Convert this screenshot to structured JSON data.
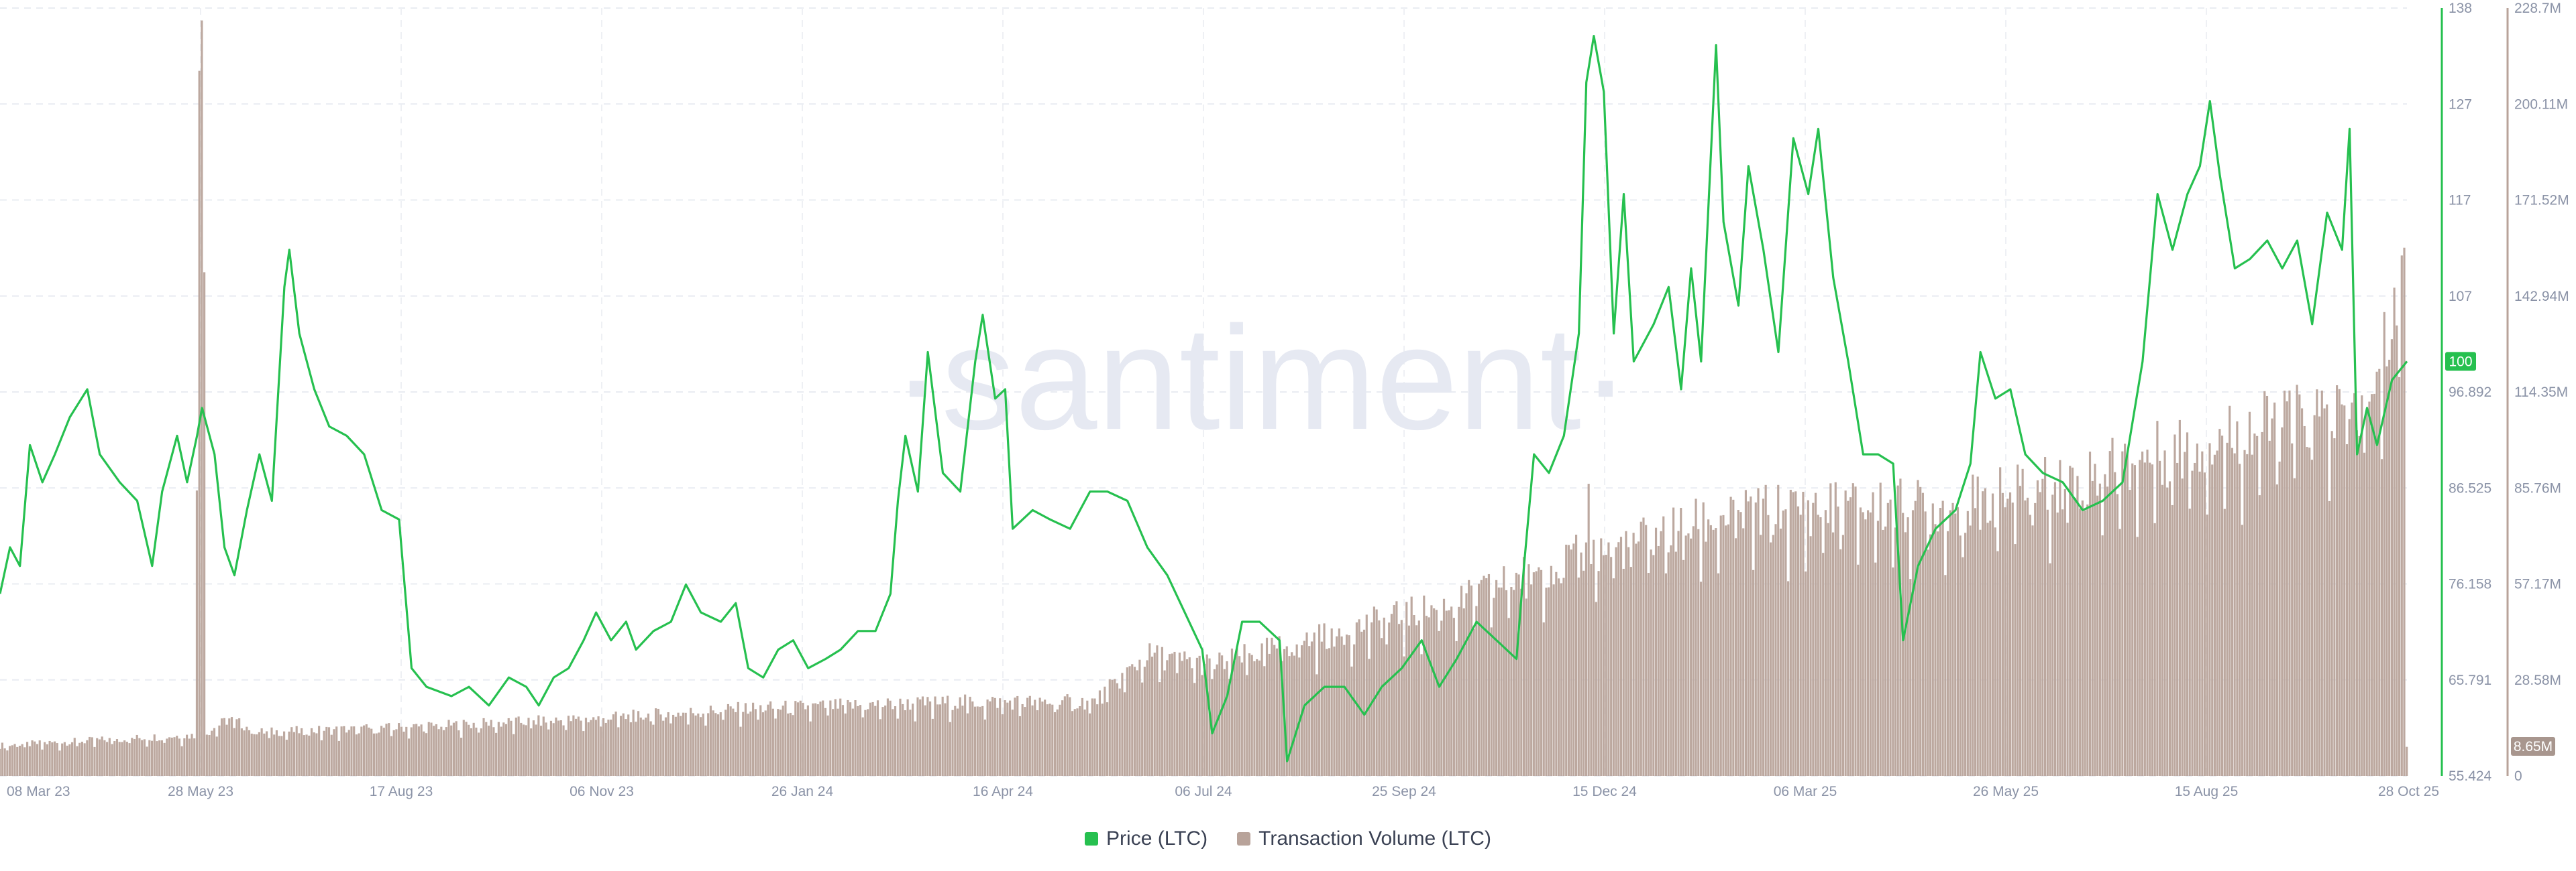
{
  "watermark": "·santiment·",
  "chart_data": {
    "type": "line+bar",
    "title": "",
    "x_axis": {
      "type": "date",
      "range": [
        "2023-03-08",
        "2025-10-28"
      ],
      "tick_labels": [
        "08 Mar 23",
        "28 May 23",
        "17 Aug 23",
        "06 Nov 23",
        "26 Jan 24",
        "16 Apr 24",
        "06 Jul 24",
        "25 Sep 24",
        "15 Dec 24",
        "06 Mar 25",
        "26 May 25",
        "15 Aug 25",
        "28 Oct 25"
      ]
    },
    "y_axis_price": {
      "range": [
        55.424,
        138
      ],
      "tick_labels": [
        "138",
        "127",
        "117",
        "107",
        "96.892",
        "86.525",
        "76.158",
        "65.791",
        "55.424"
      ]
    },
    "y_axis_volume": {
      "range": [
        0,
        228700000
      ],
      "tick_labels": [
        "228.7M",
        "200.11M",
        "171.52M",
        "142.94M",
        "114.35M",
        "85.76M",
        "57.17M",
        "28.58M",
        "0"
      ]
    },
    "current_price_label": "100",
    "current_volume_label": "8.65M",
    "legend_position": "bottom-center",
    "grid": true,
    "series": [
      {
        "name": "Price (LTC)",
        "kind": "line",
        "axis": "price",
        "color": "#26c04f",
        "points": [
          [
            "2023-03-08",
            75
          ],
          [
            "2023-03-12",
            80
          ],
          [
            "2023-03-16",
            78
          ],
          [
            "2023-03-20",
            91
          ],
          [
            "2023-03-25",
            87
          ],
          [
            "2023-03-30",
            90
          ],
          [
            "2023-04-05",
            94
          ],
          [
            "2023-04-12",
            97
          ],
          [
            "2023-04-17",
            90
          ],
          [
            "2023-04-25",
            87
          ],
          [
            "2023-05-02",
            85
          ],
          [
            "2023-05-08",
            78
          ],
          [
            "2023-05-12",
            86
          ],
          [
            "2023-05-18",
            92
          ],
          [
            "2023-05-22",
            87
          ],
          [
            "2023-05-26",
            92
          ],
          [
            "2023-05-28",
            95
          ],
          [
            "2023-06-02",
            90
          ],
          [
            "2023-06-06",
            80
          ],
          [
            "2023-06-10",
            77
          ],
          [
            "2023-06-15",
            84
          ],
          [
            "2023-06-20",
            90
          ],
          [
            "2023-06-25",
            85
          ],
          [
            "2023-06-30",
            108
          ],
          [
            "2023-07-02",
            112
          ],
          [
            "2023-07-06",
            103
          ],
          [
            "2023-07-12",
            97
          ],
          [
            "2023-07-18",
            93
          ],
          [
            "2023-07-25",
            92
          ],
          [
            "2023-08-01",
            90
          ],
          [
            "2023-08-08",
            84
          ],
          [
            "2023-08-15",
            83
          ],
          [
            "2023-08-20",
            67
          ],
          [
            "2023-08-26",
            65
          ],
          [
            "2023-09-05",
            64
          ],
          [
            "2023-09-12",
            65
          ],
          [
            "2023-09-20",
            63
          ],
          [
            "2023-09-28",
            66
          ],
          [
            "2023-10-05",
            65
          ],
          [
            "2023-10-10",
            63
          ],
          [
            "2023-10-16",
            66
          ],
          [
            "2023-10-22",
            67
          ],
          [
            "2023-10-28",
            70
          ],
          [
            "2023-11-02",
            73
          ],
          [
            "2023-11-08",
            70
          ],
          [
            "2023-11-14",
            72
          ],
          [
            "2023-11-18",
            69
          ],
          [
            "2023-11-25",
            71
          ],
          [
            "2023-12-02",
            72
          ],
          [
            "2023-12-08",
            76
          ],
          [
            "2023-12-14",
            73
          ],
          [
            "2023-12-22",
            72
          ],
          [
            "2023-12-28",
            74
          ],
          [
            "2024-01-02",
            67
          ],
          [
            "2024-01-08",
            66
          ],
          [
            "2024-01-14",
            69
          ],
          [
            "2024-01-20",
            70
          ],
          [
            "2024-01-26",
            67
          ],
          [
            "2024-02-02",
            68
          ],
          [
            "2024-02-08",
            69
          ],
          [
            "2024-02-15",
            71
          ],
          [
            "2024-02-22",
            71
          ],
          [
            "2024-02-28",
            75
          ],
          [
            "2024-03-02",
            85
          ],
          [
            "2024-03-05",
            92
          ],
          [
            "2024-03-10",
            86
          ],
          [
            "2024-03-14",
            101
          ],
          [
            "2024-03-20",
            88
          ],
          [
            "2024-03-27",
            86
          ],
          [
            "2024-04-02",
            100
          ],
          [
            "2024-04-05",
            105
          ],
          [
            "2024-04-10",
            96
          ],
          [
            "2024-04-14",
            97
          ],
          [
            "2024-04-17",
            82
          ],
          [
            "2024-04-25",
            84
          ],
          [
            "2024-05-02",
            83
          ],
          [
            "2024-05-10",
            82
          ],
          [
            "2024-05-18",
            86
          ],
          [
            "2024-05-25",
            86
          ],
          [
            "2024-06-02",
            85
          ],
          [
            "2024-06-10",
            80
          ],
          [
            "2024-06-18",
            77
          ],
          [
            "2024-06-25",
            73
          ],
          [
            "2024-07-02",
            69
          ],
          [
            "2024-07-06",
            60
          ],
          [
            "2024-07-12",
            64
          ],
          [
            "2024-07-18",
            72
          ],
          [
            "2024-07-25",
            72
          ],
          [
            "2024-08-02",
            70
          ],
          [
            "2024-08-05",
            57
          ],
          [
            "2024-08-12",
            63
          ],
          [
            "2024-08-20",
            65
          ],
          [
            "2024-08-28",
            65
          ],
          [
            "2024-09-05",
            62
          ],
          [
            "2024-09-12",
            65
          ],
          [
            "2024-09-20",
            67
          ],
          [
            "2024-09-28",
            70
          ],
          [
            "2024-10-05",
            65
          ],
          [
            "2024-10-12",
            68
          ],
          [
            "2024-10-20",
            72
          ],
          [
            "2024-10-28",
            70
          ],
          [
            "2024-11-05",
            68
          ],
          [
            "2024-11-08",
            78
          ],
          [
            "2024-11-12",
            90
          ],
          [
            "2024-11-18",
            88
          ],
          [
            "2024-11-24",
            92
          ],
          [
            "2024-11-30",
            103
          ],
          [
            "2024-12-03",
            130
          ],
          [
            "2024-12-06",
            135
          ],
          [
            "2024-12-10",
            129
          ],
          [
            "2024-12-14",
            103
          ],
          [
            "2024-12-18",
            118
          ],
          [
            "2024-12-22",
            100
          ],
          [
            "2024-12-30",
            104
          ],
          [
            "2025-01-05",
            108
          ],
          [
            "2025-01-10",
            97
          ],
          [
            "2025-01-14",
            110
          ],
          [
            "2025-01-18",
            100
          ],
          [
            "2025-01-24",
            134
          ],
          [
            "2025-01-27",
            115
          ],
          [
            "2025-02-02",
            106
          ],
          [
            "2025-02-06",
            121
          ],
          [
            "2025-02-12",
            112
          ],
          [
            "2025-02-18",
            101
          ],
          [
            "2025-02-24",
            124
          ],
          [
            "2025-03-02",
            118
          ],
          [
            "2025-03-06",
            125
          ],
          [
            "2025-03-12",
            109
          ],
          [
            "2025-03-18",
            100
          ],
          [
            "2025-03-24",
            90
          ],
          [
            "2025-03-30",
            90
          ],
          [
            "2025-04-05",
            89
          ],
          [
            "2025-04-09",
            70
          ],
          [
            "2025-04-15",
            78
          ],
          [
            "2025-04-22",
            82
          ],
          [
            "2025-04-30",
            84
          ],
          [
            "2025-05-06",
            89
          ],
          [
            "2025-05-10",
            101
          ],
          [
            "2025-05-16",
            96
          ],
          [
            "2025-05-22",
            97
          ],
          [
            "2025-05-28",
            90
          ],
          [
            "2025-06-04",
            88
          ],
          [
            "2025-06-12",
            87
          ],
          [
            "2025-06-20",
            84
          ],
          [
            "2025-06-28",
            85
          ],
          [
            "2025-07-06",
            87
          ],
          [
            "2025-07-14",
            100
          ],
          [
            "2025-07-20",
            118
          ],
          [
            "2025-07-26",
            112
          ],
          [
            "2025-08-01",
            118
          ],
          [
            "2025-08-06",
            121
          ],
          [
            "2025-08-10",
            128
          ],
          [
            "2025-08-14",
            120
          ],
          [
            "2025-08-20",
            110
          ],
          [
            "2025-08-26",
            111
          ],
          [
            "2025-09-02",
            113
          ],
          [
            "2025-09-08",
            110
          ],
          [
            "2025-09-14",
            113
          ],
          [
            "2025-09-20",
            104
          ],
          [
            "2025-09-26",
            116
          ],
          [
            "2025-10-02",
            112
          ],
          [
            "2025-10-05",
            125
          ],
          [
            "2025-10-08",
            90
          ],
          [
            "2025-10-12",
            95
          ],
          [
            "2025-10-16",
            91
          ],
          [
            "2025-10-22",
            98
          ],
          [
            "2025-10-28",
            100
          ]
        ]
      },
      {
        "name": "Transaction Volume (LTC)",
        "kind": "bar",
        "axis": "volume",
        "color": "#b8a39a",
        "anchors": [
          [
            "2023-03-08",
            9000000
          ],
          [
            "2023-05-20",
            12000000
          ],
          [
            "2023-05-28",
            12000000
          ],
          [
            "2023-06-08",
            17000000
          ],
          [
            "2023-06-20",
            13000000
          ],
          [
            "2023-08-01",
            14000000
          ],
          [
            "2023-09-01",
            15000000
          ],
          [
            "2023-11-01",
            17000000
          ],
          [
            "2024-01-01",
            20000000
          ],
          [
            "2024-04-01",
            22000000
          ],
          [
            "2024-05-20",
            22000000
          ],
          [
            "2024-06-10",
            36000000
          ],
          [
            "2024-07-06",
            33000000
          ],
          [
            "2024-09-01",
            44000000
          ],
          [
            "2024-10-15",
            52000000
          ],
          [
            "2024-11-15",
            62000000
          ],
          [
            "2024-12-15",
            68000000
          ],
          [
            "2025-02-01",
            78000000
          ],
          [
            "2025-03-15",
            80000000
          ],
          [
            "2025-05-01",
            80000000
          ],
          [
            "2025-06-15",
            88000000
          ],
          [
            "2025-08-01",
            98000000
          ],
          [
            "2025-09-15",
            106000000
          ],
          [
            "2025-10-15",
            110000000
          ],
          [
            "2025-10-22",
            138000000
          ],
          [
            "2025-10-27",
            145000000
          ]
        ],
        "spikes": [
          [
            "2023-05-26",
            85000000
          ],
          [
            "2023-05-27",
            210000000
          ],
          [
            "2023-05-28",
            225000000
          ],
          [
            "2023-05-29",
            150000000
          ],
          [
            "2024-12-04",
            87000000
          ],
          [
            "2025-10-26",
            155000000
          ]
        ]
      }
    ]
  }
}
